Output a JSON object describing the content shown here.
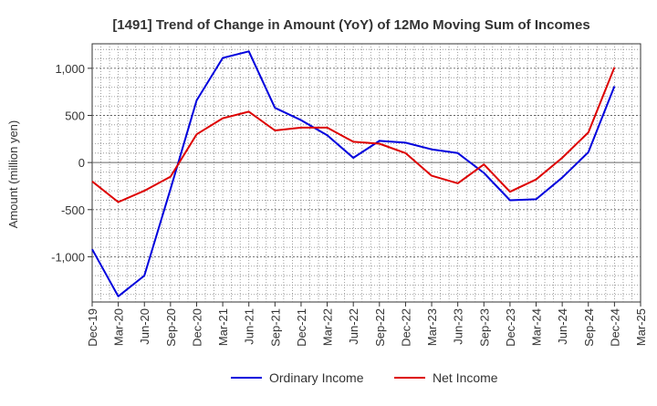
{
  "chart_data": {
    "type": "line",
    "title": "[1491]  Trend of Change in Amount (YoY) of 12Mo Moving Sum of Incomes",
    "ylabel": "Amount (million yen)",
    "xlabel": "",
    "categories": [
      "Dec-19",
      "Mar-20",
      "Jun-20",
      "Sep-20",
      "Dec-20",
      "Mar-21",
      "Jun-21",
      "Sep-21",
      "Dec-21",
      "Mar-22",
      "Jun-22",
      "Sep-22",
      "Dec-22",
      "Mar-23",
      "Jun-23",
      "Sep-23",
      "Dec-23",
      "Mar-24",
      "Jun-24",
      "Sep-24",
      "Dec-24",
      "Mar-25"
    ],
    "ylim": [
      -1480,
      1260
    ],
    "yticks": [
      -1000,
      -500,
      0,
      500,
      1000
    ],
    "ytick_labels": [
      "-1,000",
      "-500",
      "0",
      "500",
      "1,000"
    ],
    "series": [
      {
        "name": "Ordinary Income",
        "color": "#0000dd",
        "values": [
          -920,
          -1420,
          -1200,
          -280,
          660,
          1110,
          1180,
          580,
          450,
          290,
          50,
          230,
          210,
          140,
          100,
          -110,
          -400,
          -390,
          -160,
          110,
          810,
          null
        ]
      },
      {
        "name": "Net Income",
        "color": "#dd0000",
        "values": [
          -200,
          -420,
          -300,
          -150,
          300,
          470,
          540,
          340,
          370,
          370,
          220,
          200,
          100,
          -140,
          -220,
          -20,
          -310,
          -180,
          50,
          320,
          1010,
          null
        ]
      }
    ],
    "grid": true,
    "legend_position": "bottom"
  }
}
